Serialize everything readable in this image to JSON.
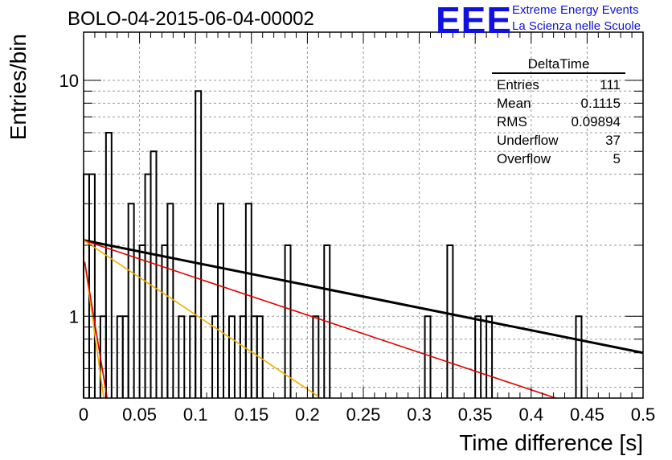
{
  "title": "BOLO-04-2015-06-04-00002",
  "logo": {
    "mark": "EEE",
    "line1": "Extreme Energy Events",
    "line2": "La Scienza nelle Scuole",
    "color": "#1010e0"
  },
  "stats": {
    "title": "DeltaTime",
    "rows": [
      {
        "label": "Entries",
        "value": "111"
      },
      {
        "label": "Mean",
        "value": "0.1115"
      },
      {
        "label": "RMS",
        "value": "0.09894"
      },
      {
        "label": "Underflow",
        "value": "37"
      },
      {
        "label": "Overflow",
        "value": "5"
      }
    ]
  },
  "chart_data": {
    "type": "histogram",
    "xlabel": "Time difference [s]",
    "ylabel": "Entries/bin",
    "xlim": [
      0,
      0.5
    ],
    "ylim": [
      0.45,
      16
    ],
    "ylog": true,
    "grid": true,
    "xticks": [
      "0",
      "0.05",
      "0.1",
      "0.15",
      "0.2",
      "0.25",
      "0.3",
      "0.35",
      "0.4",
      "0.45",
      "0.5"
    ],
    "yticks": [
      {
        "value": 1,
        "label": "1"
      },
      {
        "value": 10,
        "label": "10"
      }
    ],
    "bin_width": 0.005,
    "bins": [
      {
        "x": 0.0,
        "count": 4
      },
      {
        "x": 0.005,
        "count": 4
      },
      {
        "x": 0.015,
        "count": 1
      },
      {
        "x": 0.02,
        "count": 6
      },
      {
        "x": 0.03,
        "count": 1
      },
      {
        "x": 0.035,
        "count": 1
      },
      {
        "x": 0.04,
        "count": 3
      },
      {
        "x": 0.05,
        "count": 2
      },
      {
        "x": 0.055,
        "count": 4
      },
      {
        "x": 0.06,
        "count": 5
      },
      {
        "x": 0.07,
        "count": 2
      },
      {
        "x": 0.075,
        "count": 3
      },
      {
        "x": 0.085,
        "count": 1
      },
      {
        "x": 0.095,
        "count": 1
      },
      {
        "x": 0.1,
        "count": 9
      },
      {
        "x": 0.115,
        "count": 1
      },
      {
        "x": 0.12,
        "count": 3
      },
      {
        "x": 0.13,
        "count": 1
      },
      {
        "x": 0.14,
        "count": 1
      },
      {
        "x": 0.145,
        "count": 3
      },
      {
        "x": 0.15,
        "count": 1
      },
      {
        "x": 0.155,
        "count": 1
      },
      {
        "x": 0.18,
        "count": 2
      },
      {
        "x": 0.205,
        "count": 1
      },
      {
        "x": 0.215,
        "count": 2
      },
      {
        "x": 0.305,
        "count": 1
      },
      {
        "x": 0.325,
        "count": 2
      },
      {
        "x": 0.35,
        "count": 1
      },
      {
        "x": 0.36,
        "count": 1
      },
      {
        "x": 0.44,
        "count": 1
      }
    ],
    "fits": [
      {
        "color": "#000000",
        "width": 3,
        "x0": 0.0,
        "y0": 2.1,
        "x1": 0.5,
        "y1": 0.7
      },
      {
        "color": "#e00000",
        "width": 1.6,
        "x0": 0.0,
        "y0": 2.1,
        "x1": 0.422,
        "y1": 0.45
      },
      {
        "color": "#f0b000",
        "width": 1.6,
        "x0": 0.0,
        "y0": 2.1,
        "x1": 0.212,
        "y1": 0.45
      },
      {
        "color": "#f0b000",
        "width": 1.6,
        "x0": 0.001,
        "y0": 1.7,
        "x1": 0.018,
        "y1": 0.45
      },
      {
        "color": "#e00000",
        "width": 1.6,
        "x0": 0.001,
        "y0": 1.7,
        "x1": 0.021,
        "y1": 0.45
      }
    ]
  }
}
